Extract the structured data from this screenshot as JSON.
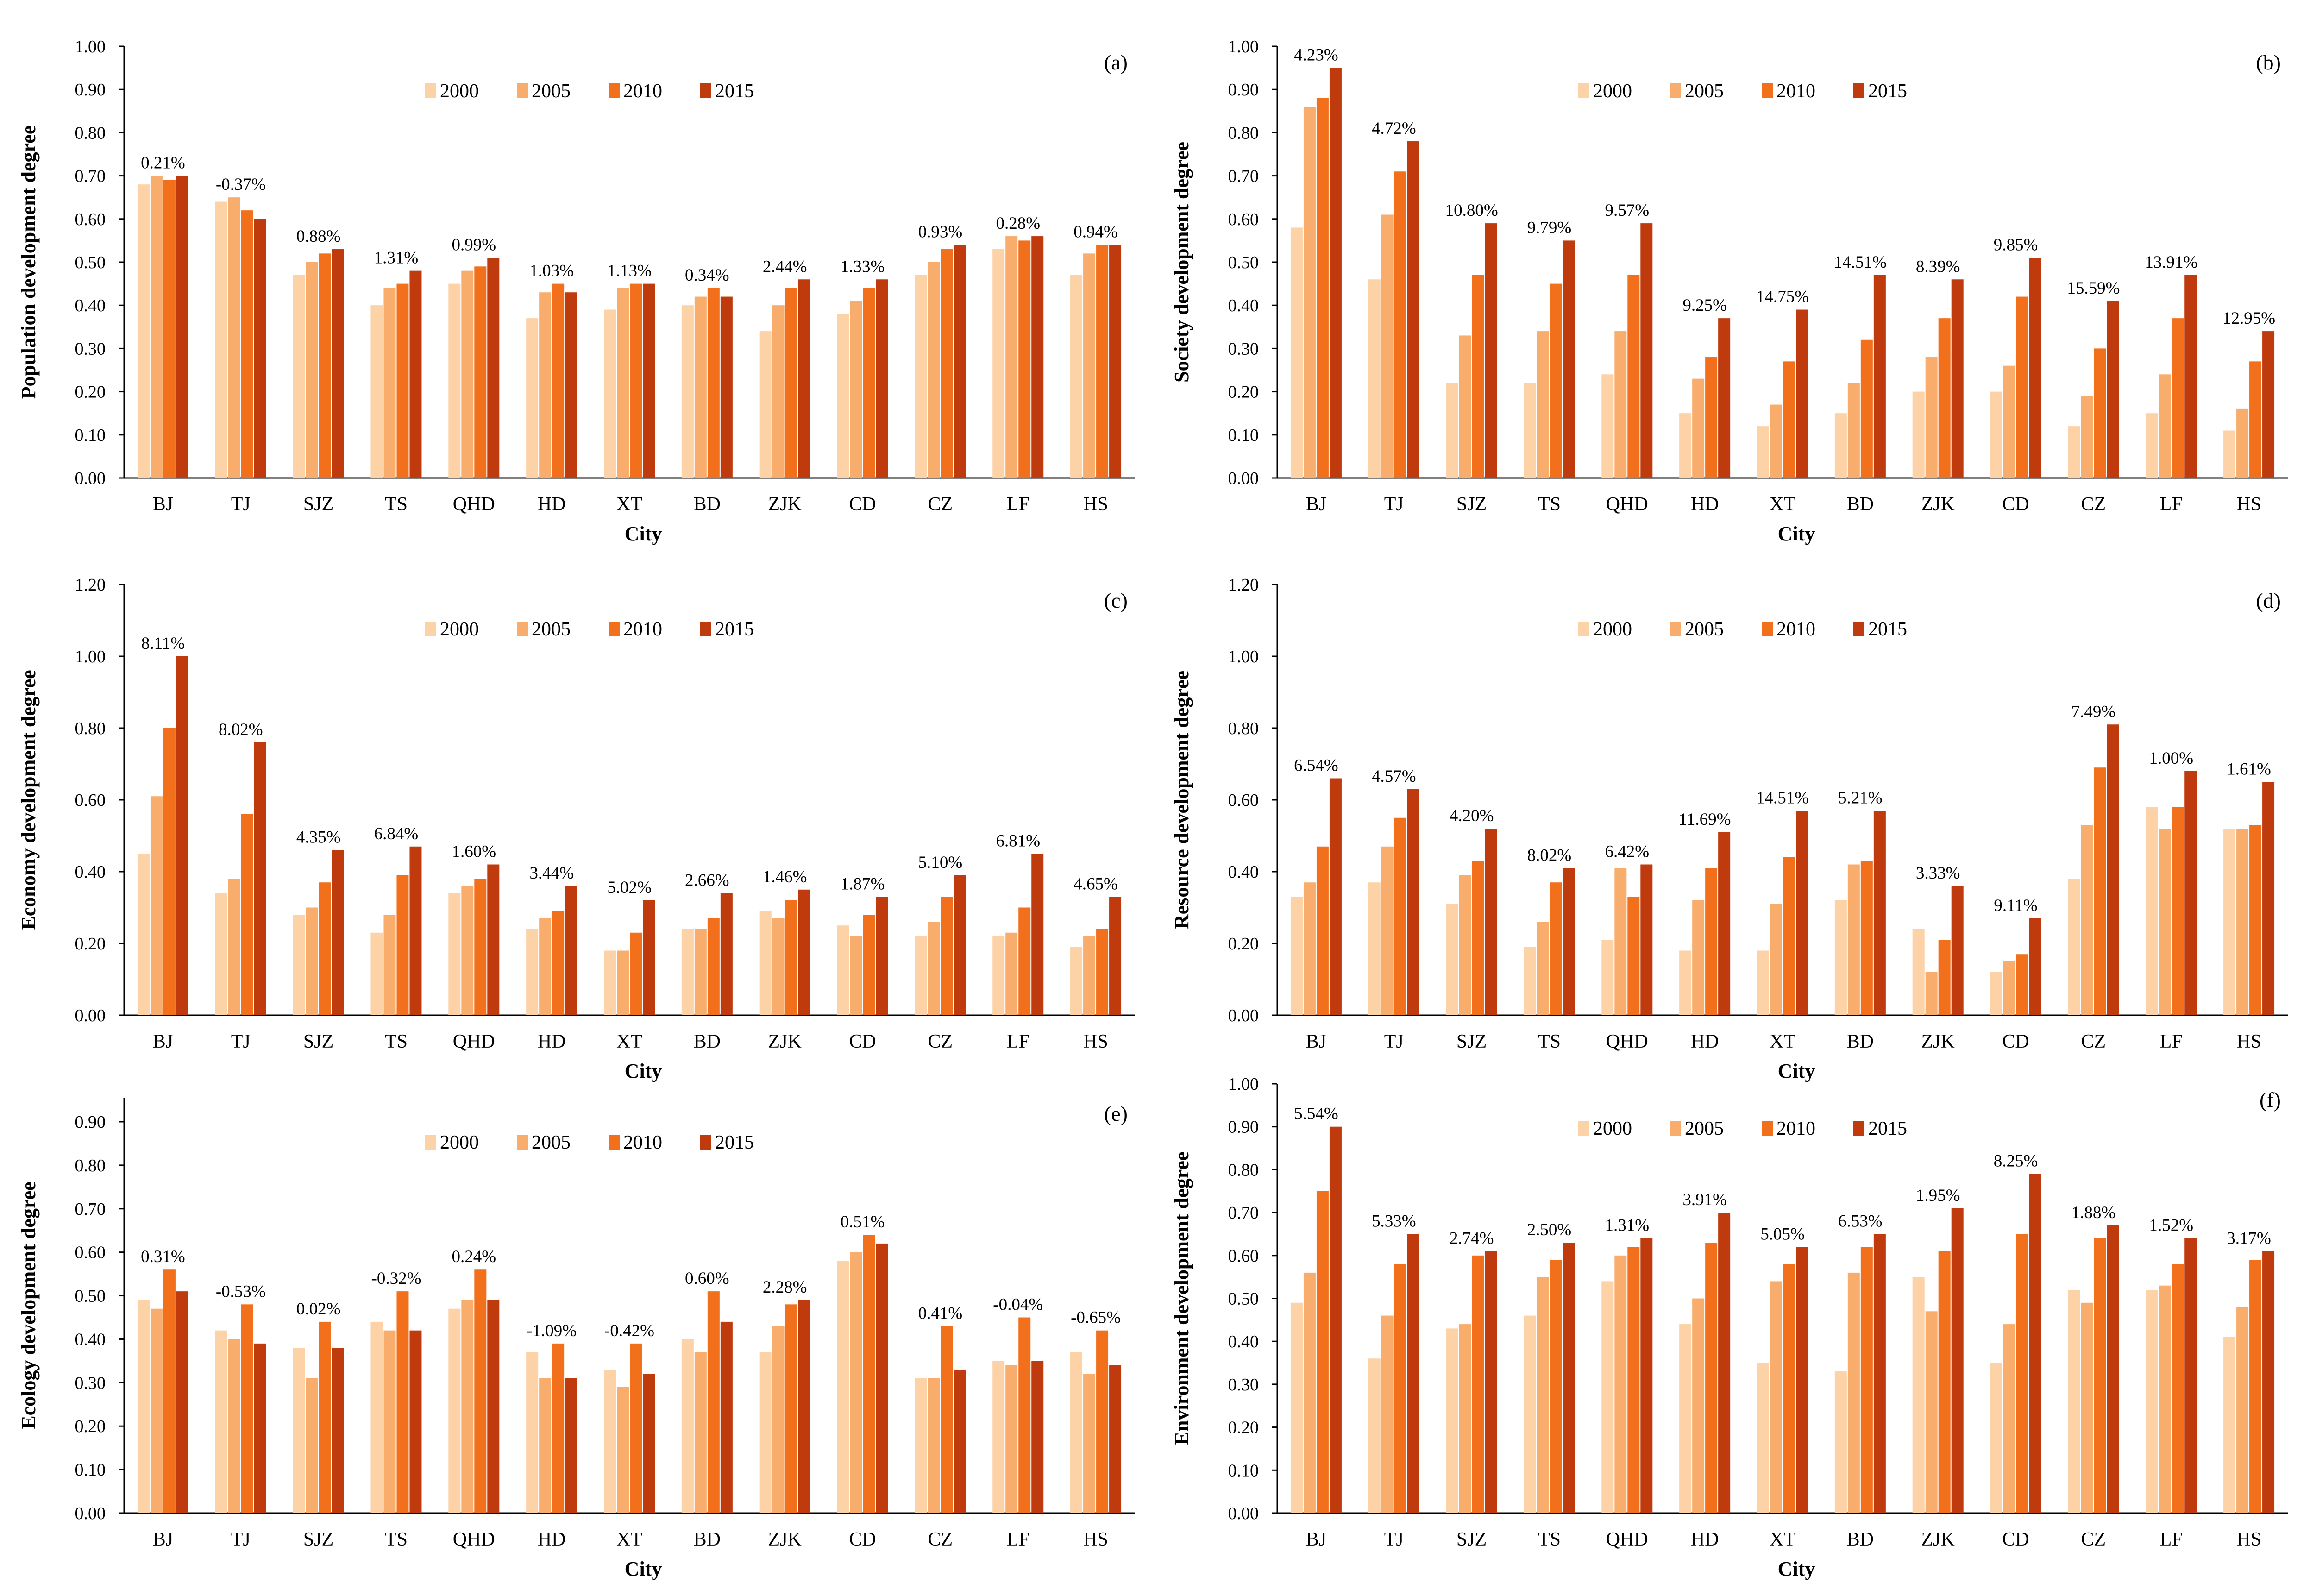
{
  "colors": {
    "2000": "#fcd2a6",
    "2005": "#f8ad6d",
    "2010": "#f26f1c",
    "2015": "#bf3a0c",
    "axis": "#000000"
  },
  "years": [
    "2000",
    "2005",
    "2010",
    "2015"
  ],
  "cities": [
    "BJ",
    "TJ",
    "SJZ",
    "TS",
    "QHD",
    "HD",
    "XT",
    "BD",
    "ZJK",
    "CD",
    "CZ",
    "LF",
    "HS"
  ],
  "xlabel": "City",
  "chart_data": [
    {
      "type": "bar",
      "panel": "(a)",
      "ylabel": "Population development degree",
      "xlabel": "City",
      "ylim": [
        0,
        1.0
      ],
      "yticks": [
        "0.00",
        "0.10",
        "0.20",
        "0.30",
        "0.40",
        "0.50",
        "0.60",
        "0.70",
        "0.80",
        "0.90",
        "1.00"
      ],
      "categories": [
        "BJ",
        "TJ",
        "SJZ",
        "TS",
        "QHD",
        "HD",
        "XT",
        "BD",
        "ZJK",
        "CD",
        "CZ",
        "LF",
        "HS"
      ],
      "legend": [
        "2000",
        "2005",
        "2010",
        "2015"
      ],
      "series": [
        {
          "name": "2000",
          "values": [
            0.68,
            0.64,
            0.47,
            0.4,
            0.45,
            0.37,
            0.39,
            0.4,
            0.34,
            0.38,
            0.47,
            0.53,
            0.47
          ]
        },
        {
          "name": "2005",
          "values": [
            0.7,
            0.65,
            0.5,
            0.44,
            0.48,
            0.43,
            0.44,
            0.42,
            0.4,
            0.41,
            0.5,
            0.56,
            0.52
          ]
        },
        {
          "name": "2010",
          "values": [
            0.69,
            0.62,
            0.52,
            0.45,
            0.49,
            0.45,
            0.45,
            0.44,
            0.44,
            0.44,
            0.53,
            0.55,
            0.54
          ]
        },
        {
          "name": "2015",
          "values": [
            0.7,
            0.6,
            0.53,
            0.48,
            0.51,
            0.43,
            0.45,
            0.42,
            0.46,
            0.46,
            0.54,
            0.56,
            0.54
          ]
        }
      ],
      "rates": [
        "0.21%",
        "-0.37%",
        "0.88%",
        "1.31%",
        "0.99%",
        "1.03%",
        "1.13%",
        "0.34%",
        "2.44%",
        "1.33%",
        "0.93%",
        "0.28%",
        "0.94%"
      ]
    },
    {
      "type": "bar",
      "panel": "(b)",
      "ylabel": "Society development degree",
      "xlabel": "City",
      "ylim": [
        0,
        1.0
      ],
      "yticks": [
        "0.00",
        "0.10",
        "0.20",
        "0.30",
        "0.40",
        "0.50",
        "0.60",
        "0.70",
        "0.80",
        "0.90",
        "1.00"
      ],
      "categories": [
        "BJ",
        "TJ",
        "SJZ",
        "TS",
        "QHD",
        "HD",
        "XT",
        "BD",
        "ZJK",
        "CD",
        "CZ",
        "LF",
        "HS"
      ],
      "legend": [
        "2000",
        "2005",
        "2010",
        "2015"
      ],
      "series": [
        {
          "name": "2000",
          "values": [
            0.58,
            0.46,
            0.22,
            0.22,
            0.24,
            0.15,
            0.12,
            0.15,
            0.2,
            0.2,
            0.12,
            0.15,
            0.11
          ]
        },
        {
          "name": "2005",
          "values": [
            0.86,
            0.61,
            0.33,
            0.34,
            0.34,
            0.23,
            0.17,
            0.22,
            0.28,
            0.26,
            0.19,
            0.24,
            0.16
          ]
        },
        {
          "name": "2010",
          "values": [
            0.88,
            0.71,
            0.47,
            0.45,
            0.47,
            0.28,
            0.27,
            0.32,
            0.37,
            0.42,
            0.3,
            0.37,
            0.27
          ]
        },
        {
          "name": "2015",
          "values": [
            0.95,
            0.78,
            0.59,
            0.55,
            0.59,
            0.37,
            0.39,
            0.47,
            0.46,
            0.51,
            0.41,
            0.47,
            0.34
          ]
        }
      ],
      "rates": [
        "4.23%",
        "4.72%",
        "10.80%",
        "9.79%",
        "9.57%",
        "9.25%",
        "14.75%",
        "14.51%",
        "8.39%",
        "9.85%",
        "15.59%",
        "13.91%",
        "12.95%"
      ]
    },
    {
      "type": "bar",
      "panel": "(c)",
      "ylabel": "Economy development degree",
      "xlabel": "City",
      "ylim": [
        0,
        1.2
      ],
      "yticks": [
        "0.00",
        "0.20",
        "0.40",
        "0.60",
        "0.80",
        "1.00",
        "1.20"
      ],
      "categories": [
        "BJ",
        "TJ",
        "SJZ",
        "TS",
        "QHD",
        "HD",
        "XT",
        "BD",
        "ZJK",
        "CD",
        "CZ",
        "LF",
        "HS"
      ],
      "legend": [
        "2000",
        "2005",
        "2010",
        "2015"
      ],
      "series": [
        {
          "name": "2000",
          "values": [
            0.45,
            0.34,
            0.28,
            0.23,
            0.34,
            0.24,
            0.18,
            0.24,
            0.29,
            0.25,
            0.22,
            0.22,
            0.19
          ]
        },
        {
          "name": "2005",
          "values": [
            0.61,
            0.38,
            0.3,
            0.28,
            0.36,
            0.27,
            0.18,
            0.24,
            0.27,
            0.22,
            0.26,
            0.23,
            0.22
          ]
        },
        {
          "name": "2010",
          "values": [
            0.8,
            0.56,
            0.37,
            0.39,
            0.38,
            0.29,
            0.23,
            0.27,
            0.32,
            0.28,
            0.33,
            0.3,
            0.24
          ]
        },
        {
          "name": "2015",
          "values": [
            1.0,
            0.76,
            0.46,
            0.47,
            0.42,
            0.36,
            0.32,
            0.34,
            0.35,
            0.33,
            0.39,
            0.45,
            0.33
          ]
        }
      ],
      "rates": [
        "8.11%",
        "8.02%",
        "4.35%",
        "6.84%",
        "1.60%",
        "3.44%",
        "5.02%",
        "2.66%",
        "1.46%",
        "1.87%",
        "5.10%",
        "6.81%",
        "4.65%"
      ]
    },
    {
      "type": "bar",
      "panel": "(d)",
      "ylabel": "Resource development degree",
      "xlabel": "City",
      "ylim": [
        0,
        1.2
      ],
      "yticks": [
        "0.00",
        "0.20",
        "0.40",
        "0.60",
        "0.80",
        "1.00",
        "1.20"
      ],
      "categories": [
        "BJ",
        "TJ",
        "SJZ",
        "TS",
        "QHD",
        "HD",
        "XT",
        "BD",
        "ZJK",
        "CD",
        "CZ",
        "LF",
        "HS"
      ],
      "legend": [
        "2000",
        "2005",
        "2010",
        "2015"
      ],
      "series": [
        {
          "name": "2000",
          "values": [
            0.33,
            0.37,
            0.31,
            0.19,
            0.21,
            0.18,
            0.18,
            0.32,
            0.24,
            0.12,
            0.38,
            0.58,
            0.52
          ]
        },
        {
          "name": "2005",
          "values": [
            0.37,
            0.47,
            0.39,
            0.26,
            0.41,
            0.32,
            0.31,
            0.42,
            0.12,
            0.15,
            0.53,
            0.52,
            0.52
          ]
        },
        {
          "name": "2010",
          "values": [
            0.47,
            0.55,
            0.43,
            0.37,
            0.33,
            0.41,
            0.44,
            0.43,
            0.21,
            0.17,
            0.69,
            0.58,
            0.53
          ]
        },
        {
          "name": "2015",
          "values": [
            0.66,
            0.63,
            0.52,
            0.41,
            0.42,
            0.51,
            0.57,
            0.57,
            0.36,
            0.27,
            0.81,
            0.68,
            0.65
          ]
        }
      ],
      "rates": [
        "6.54%",
        "4.57%",
        "4.20%",
        "8.02%",
        "6.42%",
        "11.69%",
        "14.51%",
        "5.21%",
        "3.33%",
        "9.11%",
        "7.49%",
        "1.00%",
        "1.61%"
      ]
    },
    {
      "type": "bar",
      "panel": "(e)",
      "ylabel": "Ecology development degree",
      "xlabel": "City",
      "ylim": [
        0,
        0.9
      ],
      "yticks": [
        "0.00",
        "0.10",
        "0.20",
        "0.30",
        "0.40",
        "0.50",
        "0.60",
        "0.70",
        "0.80",
        "0.90"
      ],
      "categories": [
        "BJ",
        "TJ",
        "SJZ",
        "TS",
        "QHD",
        "HD",
        "XT",
        "BD",
        "ZJK",
        "CD",
        "CZ",
        "LF",
        "HS"
      ],
      "legend": [
        "2000",
        "2005",
        "2010",
        "2015"
      ],
      "series": [
        {
          "name": "2000",
          "values": [
            0.49,
            0.42,
            0.38,
            0.44,
            0.47,
            0.37,
            0.33,
            0.4,
            0.37,
            0.58,
            0.31,
            0.35,
            0.37
          ]
        },
        {
          "name": "2005",
          "values": [
            0.47,
            0.4,
            0.31,
            0.42,
            0.49,
            0.31,
            0.29,
            0.37,
            0.43,
            0.6,
            0.31,
            0.34,
            0.32
          ]
        },
        {
          "name": "2010",
          "values": [
            0.56,
            0.48,
            0.44,
            0.51,
            0.56,
            0.39,
            0.39,
            0.51,
            0.48,
            0.64,
            0.43,
            0.45,
            0.42
          ]
        },
        {
          "name": "2015",
          "values": [
            0.51,
            0.39,
            0.38,
            0.42,
            0.49,
            0.31,
            0.32,
            0.44,
            0.49,
            0.62,
            0.33,
            0.35,
            0.34
          ]
        }
      ],
      "rates": [
        "0.31%",
        "-0.53%",
        "0.02%",
        "-0.32%",
        "0.24%",
        "-1.09%",
        "-0.42%",
        "0.60%",
        "2.28%",
        "0.51%",
        "0.41%",
        "-0.04%",
        "-0.65%"
      ]
    },
    {
      "type": "bar",
      "panel": "(f)",
      "ylabel": "Environment development degree",
      "xlabel": "City",
      "ylim": [
        0,
        1.0
      ],
      "yticks": [
        "0.00",
        "0.10",
        "0.20",
        "0.30",
        "0.40",
        "0.50",
        "0.60",
        "0.70",
        "0.80",
        "0.90",
        "1.00"
      ],
      "categories": [
        "BJ",
        "TJ",
        "SJZ",
        "TS",
        "QHD",
        "HD",
        "XT",
        "BD",
        "ZJK",
        "CD",
        "CZ",
        "LF",
        "HS"
      ],
      "legend": [
        "2000",
        "2005",
        "2010",
        "2015"
      ],
      "series": [
        {
          "name": "2000",
          "values": [
            0.49,
            0.36,
            0.43,
            0.46,
            0.54,
            0.44,
            0.35,
            0.33,
            0.55,
            0.35,
            0.52,
            0.52,
            0.41
          ]
        },
        {
          "name": "2005",
          "values": [
            0.56,
            0.46,
            0.44,
            0.55,
            0.6,
            0.5,
            0.54,
            0.56,
            0.47,
            0.44,
            0.49,
            0.53,
            0.48
          ]
        },
        {
          "name": "2010",
          "values": [
            0.75,
            0.58,
            0.6,
            0.59,
            0.62,
            0.63,
            0.58,
            0.62,
            0.61,
            0.65,
            0.64,
            0.58,
            0.59
          ]
        },
        {
          "name": "2015",
          "values": [
            0.9,
            0.65,
            0.61,
            0.63,
            0.64,
            0.7,
            0.62,
            0.65,
            0.71,
            0.79,
            0.67,
            0.64,
            0.61
          ]
        }
      ],
      "rates": [
        "5.54%",
        "5.33%",
        "2.74%",
        "2.50%",
        "1.31%",
        "3.91%",
        "5.05%",
        "6.53%",
        "1.95%",
        "8.25%",
        "1.88%",
        "1.52%",
        "3.17%"
      ]
    }
  ]
}
